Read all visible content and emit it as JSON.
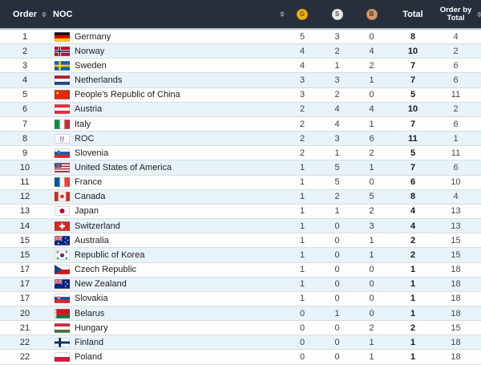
{
  "table": {
    "columns": {
      "order": "Order",
      "noc": "NOC",
      "gold": "G",
      "silver": "S",
      "bronze": "B",
      "total": "Total",
      "order_by_total": "Order by Total"
    },
    "colors": {
      "header_bg": "#272f3d",
      "header_text": "#ffffff",
      "gold": "#eeb111",
      "silver": "#ebebeb",
      "bronze": "#d09a6b",
      "row_alt": "#e8f2f9"
    },
    "rows": [
      {
        "order": "1",
        "flag": "de",
        "noc": "Germany",
        "gold": "5",
        "silver": "3",
        "bronze": "0",
        "total": "8",
        "order_by_total": "4"
      },
      {
        "order": "2",
        "flag": "no",
        "noc": "Norway",
        "gold": "4",
        "silver": "2",
        "bronze": "4",
        "total": "10",
        "order_by_total": "2"
      },
      {
        "order": "3",
        "flag": "se",
        "noc": "Sweden",
        "gold": "4",
        "silver": "1",
        "bronze": "2",
        "total": "7",
        "order_by_total": "6"
      },
      {
        "order": "4",
        "flag": "nl",
        "noc": "Netherlands",
        "gold": "3",
        "silver": "3",
        "bronze": "1",
        "total": "7",
        "order_by_total": "6"
      },
      {
        "order": "5",
        "flag": "cn",
        "noc": "People's Republic of China",
        "gold": "3",
        "silver": "2",
        "bronze": "0",
        "total": "5",
        "order_by_total": "11"
      },
      {
        "order": "6",
        "flag": "at",
        "noc": "Austria",
        "gold": "2",
        "silver": "4",
        "bronze": "4",
        "total": "10",
        "order_by_total": "2"
      },
      {
        "order": "7",
        "flag": "it",
        "noc": "Italy",
        "gold": "2",
        "silver": "4",
        "bronze": "1",
        "total": "7",
        "order_by_total": "6"
      },
      {
        "order": "8",
        "flag": "roc",
        "noc": "ROC",
        "gold": "2",
        "silver": "3",
        "bronze": "6",
        "total": "11",
        "order_by_total": "1"
      },
      {
        "order": "9",
        "flag": "si",
        "noc": "Slovenia",
        "gold": "2",
        "silver": "1",
        "bronze": "2",
        "total": "5",
        "order_by_total": "11"
      },
      {
        "order": "10",
        "flag": "us",
        "noc": "United States of America",
        "gold": "1",
        "silver": "5",
        "bronze": "1",
        "total": "7",
        "order_by_total": "6"
      },
      {
        "order": "11",
        "flag": "fr",
        "noc": "France",
        "gold": "1",
        "silver": "5",
        "bronze": "0",
        "total": "6",
        "order_by_total": "10"
      },
      {
        "order": "12",
        "flag": "ca",
        "noc": "Canada",
        "gold": "1",
        "silver": "2",
        "bronze": "5",
        "total": "8",
        "order_by_total": "4"
      },
      {
        "order": "13",
        "flag": "jp",
        "noc": "Japan",
        "gold": "1",
        "silver": "1",
        "bronze": "2",
        "total": "4",
        "order_by_total": "13"
      },
      {
        "order": "14",
        "flag": "ch",
        "noc": "Switzerland",
        "gold": "1",
        "silver": "0",
        "bronze": "3",
        "total": "4",
        "order_by_total": "13"
      },
      {
        "order": "15",
        "flag": "au",
        "noc": "Australia",
        "gold": "1",
        "silver": "0",
        "bronze": "1",
        "total": "2",
        "order_by_total": "15"
      },
      {
        "order": "15",
        "flag": "kr",
        "noc": "Republic of Korea",
        "gold": "1",
        "silver": "0",
        "bronze": "1",
        "total": "2",
        "order_by_total": "15"
      },
      {
        "order": "17",
        "flag": "cz",
        "noc": "Czech Republic",
        "gold": "1",
        "silver": "0",
        "bronze": "0",
        "total": "1",
        "order_by_total": "18"
      },
      {
        "order": "17",
        "flag": "nz",
        "noc": "New Zealand",
        "gold": "1",
        "silver": "0",
        "bronze": "0",
        "total": "1",
        "order_by_total": "18"
      },
      {
        "order": "17",
        "flag": "sk",
        "noc": "Slovakia",
        "gold": "1",
        "silver": "0",
        "bronze": "0",
        "total": "1",
        "order_by_total": "18"
      },
      {
        "order": "20",
        "flag": "by",
        "noc": "Belarus",
        "gold": "0",
        "silver": "1",
        "bronze": "0",
        "total": "1",
        "order_by_total": "18"
      },
      {
        "order": "21",
        "flag": "hu",
        "noc": "Hungary",
        "gold": "0",
        "silver": "0",
        "bronze": "2",
        "total": "2",
        "order_by_total": "15"
      },
      {
        "order": "22",
        "flag": "fi",
        "noc": "Finland",
        "gold": "0",
        "silver": "0",
        "bronze": "1",
        "total": "1",
        "order_by_total": "18"
      },
      {
        "order": "22",
        "flag": "pl",
        "noc": "Poland",
        "gold": "0",
        "silver": "0",
        "bronze": "1",
        "total": "1",
        "order_by_total": "18"
      }
    ]
  }
}
